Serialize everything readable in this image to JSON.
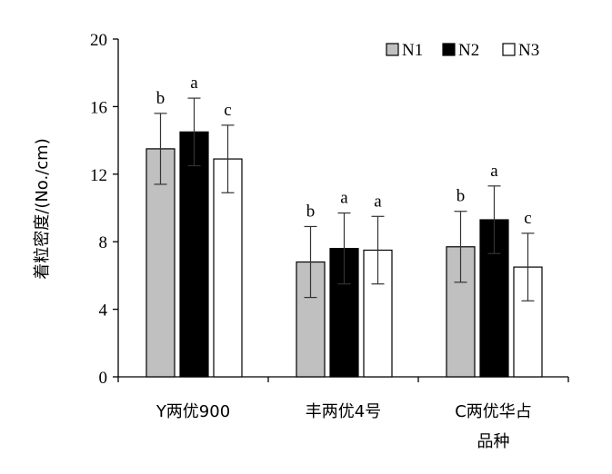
{
  "chart_data": {
    "type": "bar",
    "title": "",
    "xlabel": "",
    "ylabel": "着粒密度/(No./cm)",
    "ylim": [
      0,
      20
    ],
    "yticks": [
      0,
      4,
      8,
      12,
      16,
      20
    ],
    "categories": [
      [
        "Y两优900"
      ],
      [
        "丰两优4号"
      ],
      [
        "C两优华占",
        "品种"
      ]
    ],
    "series": [
      {
        "name": "N1",
        "color": "#c0c0c0",
        "values": [
          13.5,
          6.8,
          7.7
        ],
        "errors": [
          2.1,
          2.1,
          2.1
        ],
        "labels": [
          "b",
          "b",
          "b"
        ]
      },
      {
        "name": "N2",
        "color": "#000000",
        "values": [
          14.5,
          7.6,
          9.3
        ],
        "errors": [
          2.0,
          2.1,
          2.0
        ],
        "labels": [
          "a",
          "a",
          "a"
        ]
      },
      {
        "name": "N3",
        "color": "#ffffff",
        "values": [
          12.9,
          7.5,
          6.5
        ],
        "errors": [
          2.0,
          2.0,
          2.0
        ],
        "labels": [
          "c",
          "a",
          "c"
        ]
      }
    ],
    "legend_position": "top-right",
    "grid": false
  }
}
